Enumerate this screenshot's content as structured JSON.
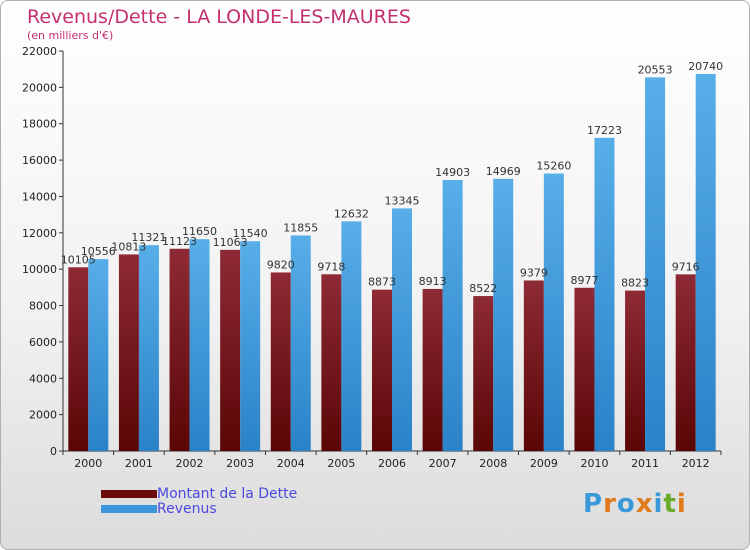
{
  "title": "Revenus/Dette - LA LONDE-LES-MAURES",
  "subtitle": "(en milliers d'€)",
  "colors": {
    "dette": "#7a1010",
    "revenus": "#3d96dc",
    "title": "#c4306e",
    "legend_text": "#4a4adf"
  },
  "logo": {
    "text": "Proxiti",
    "letters": [
      "P",
      "r",
      "o",
      "x",
      "i",
      "t",
      "i"
    ],
    "colors": [
      "#3a9ad9",
      "#e07a1a",
      "#3a9ad9",
      "#e07a1a",
      "#3a9ad9",
      "#6aaa2a",
      "#e07a1a"
    ]
  },
  "chart_data": {
    "type": "bar",
    "title": "Revenus/Dette - LA LONDE-LES-MAURES",
    "ylabel": "(en milliers d'€)",
    "categories": [
      "2000",
      "2001",
      "2002",
      "2003",
      "2004",
      "2005",
      "2006",
      "2007",
      "2008",
      "2009",
      "2010",
      "2011",
      "2012"
    ],
    "series": [
      {
        "name": "Montant de la Dette",
        "values": [
          10105,
          10813,
          11123,
          11063,
          9820,
          9718,
          8873,
          8913,
          8522,
          9379,
          8977,
          8823,
          9716
        ],
        "labels": [
          "10105",
          "10813",
          "11123",
          "11063",
          "9820",
          "9718",
          "8873",
          "8913",
          "8522",
          "9379",
          "8977",
          "8823",
          "9716"
        ]
      },
      {
        "name": "Revenus",
        "values": [
          10556,
          11321,
          11650,
          11540,
          11855,
          12632,
          13345,
          14903,
          14969,
          15260,
          17223,
          20553,
          20740
        ],
        "labels": [
          "10556",
          "11321",
          "11650",
          "11540",
          "11855",
          "12632",
          "13345",
          "14903",
          "14969",
          "15260",
          "17223",
          "20553",
          "20740"
        ]
      }
    ],
    "ylim": [
      0,
      22000
    ],
    "yticks": [
      "0",
      "2000",
      "4000",
      "6000",
      "8000",
      "10000",
      "12000",
      "14000",
      "16000",
      "18000",
      "20000",
      "22000"
    ],
    "ytick_values": [
      0,
      2000,
      4000,
      6000,
      8000,
      10000,
      12000,
      14000,
      16000,
      18000,
      20000,
      22000
    ],
    "legend": {
      "position": "bottom-left",
      "entries": [
        "Montant de la Dette",
        "Revenus"
      ]
    },
    "grid": false
  }
}
